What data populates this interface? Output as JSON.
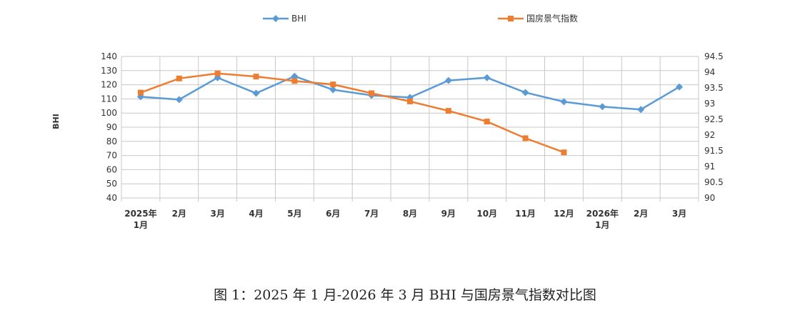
{
  "chart_data": {
    "type": "line",
    "title": "",
    "caption": "图 1：2025 年 1 月-2026 年 3 月 BHI 与国房景气指数对比图",
    "ylabel": "BHI",
    "y2label": "",
    "categories": [
      [
        "2025年",
        "1月"
      ],
      [
        "2月"
      ],
      [
        "3月"
      ],
      [
        "4月"
      ],
      [
        "5月"
      ],
      [
        "6月"
      ],
      [
        "7月"
      ],
      [
        "8月"
      ],
      [
        "9月"
      ],
      [
        "10月"
      ],
      [
        "11月"
      ],
      [
        "12月"
      ],
      [
        "2026年",
        "1月"
      ],
      [
        "2月"
      ],
      [
        "3月"
      ]
    ],
    "ylim": [
      40,
      140
    ],
    "yticks": [
      "140",
      "130",
      "120",
      "110",
      "100",
      "90",
      "80",
      "70",
      "60",
      "50",
      "40"
    ],
    "y2lim": [
      90,
      94.5
    ],
    "y2ticks": [
      "94.5",
      "94",
      "93.5",
      "93",
      "92.5",
      "92",
      "91.5",
      "91",
      "90.5",
      "90"
    ],
    "grid": true,
    "legend_position": "top",
    "series": [
      {
        "name": "BHI",
        "axis": "left",
        "color": "#5b9bd5",
        "marker": "diamond",
        "values": [
          111.5,
          109.5,
          125,
          114,
          126,
          116.5,
          112.5,
          111,
          123,
          125,
          114.5,
          108,
          104.5,
          102.5,
          118.5
        ]
      },
      {
        "name": "国房景气指数",
        "axis": "right",
        "color": "#ed7d31",
        "marker": "square",
        "values": [
          93.35,
          93.8,
          93.96,
          93.86,
          93.72,
          93.61,
          93.33,
          93.07,
          92.77,
          92.43,
          91.9,
          91.45,
          null,
          null,
          null
        ]
      }
    ]
  }
}
